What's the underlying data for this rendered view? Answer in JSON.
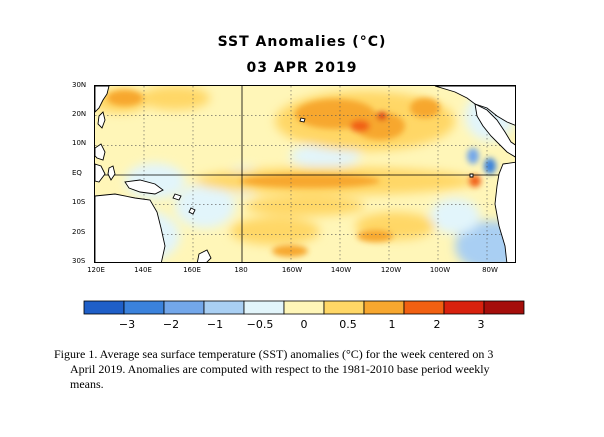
{
  "title": "SST Anomalies (°C)",
  "date": "03 APR 2019",
  "map": {
    "lat_labels": [
      "30N",
      "20N",
      "10N",
      "EQ",
      "10S",
      "20S",
      "30S"
    ],
    "lon_labels": [
      "120E",
      "140E",
      "160E",
      "180",
      "160W",
      "140W",
      "120W",
      "100W",
      "80W"
    ]
  },
  "colorbar": {
    "colors": [
      "#1f5fc8",
      "#3b82dc",
      "#73a7ea",
      "#a9cff3",
      "#e2f5fb",
      "#fff6b8",
      "#ffd766",
      "#f7a72f",
      "#f16012",
      "#d8210e",
      "#a50e0b"
    ],
    "tick_labels": [
      "−3",
      "−2",
      "−1",
      "−0.5",
      "0",
      "0.5",
      "1",
      "2",
      "3"
    ]
  },
  "caption": {
    "line1": "Figure 1. Average sea surface temperature (SST) anomalies (°C) for the week centered on 3",
    "line2": "April 2019.  Anomalies are computed with respect to the 1981-2010 base period weekly",
    "line3": "means."
  }
}
